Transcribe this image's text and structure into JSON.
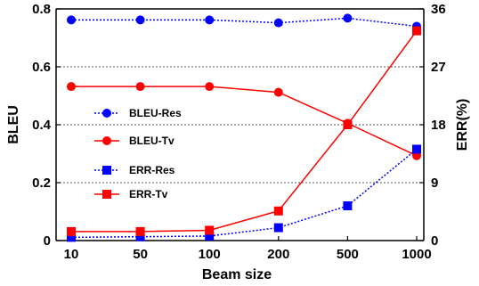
{
  "chart_data": {
    "type": "line",
    "categories": [
      "10",
      "50",
      "100",
      "200",
      "500",
      "1000"
    ],
    "xlabel": "Beam size",
    "ylabel": "BLEU",
    "ylabel_right": "ERR(%)",
    "ylim": [
      0,
      0.8
    ],
    "ylim_right": [
      0,
      36
    ],
    "yticks": [
      "0",
      "0.2",
      "0.4",
      "0.6",
      "0.8"
    ],
    "yticks_right": [
      "0",
      "9",
      "18",
      "27",
      "36"
    ],
    "grid": "horizontal dotted",
    "legend_placement": "center-left",
    "series": [
      {
        "name": "BLEU-Res",
        "axis": "left",
        "color": "#0000ff",
        "line_style": "dotted",
        "marker": "circle",
        "values": [
          0.762,
          0.762,
          0.762,
          0.752,
          0.768,
          0.74
        ]
      },
      {
        "name": "BLEU-Tv",
        "axis": "left",
        "color": "#ff0000",
        "line_style": "solid",
        "marker": "circle",
        "values": [
          0.532,
          0.532,
          0.532,
          0.512,
          0.405,
          0.293
        ]
      },
      {
        "name": "ERR-Res",
        "axis": "right",
        "color": "#0000ff",
        "line_style": "dotted",
        "marker": "square",
        "values": [
          0.5,
          0.6,
          0.7,
          2.0,
          5.4,
          14.2
        ]
      },
      {
        "name": "ERR-Tv",
        "axis": "right",
        "color": "#ff0000",
        "line_style": "solid",
        "marker": "square",
        "values": [
          1.4,
          1.4,
          1.6,
          4.6,
          18.0,
          32.6
        ]
      }
    ]
  }
}
